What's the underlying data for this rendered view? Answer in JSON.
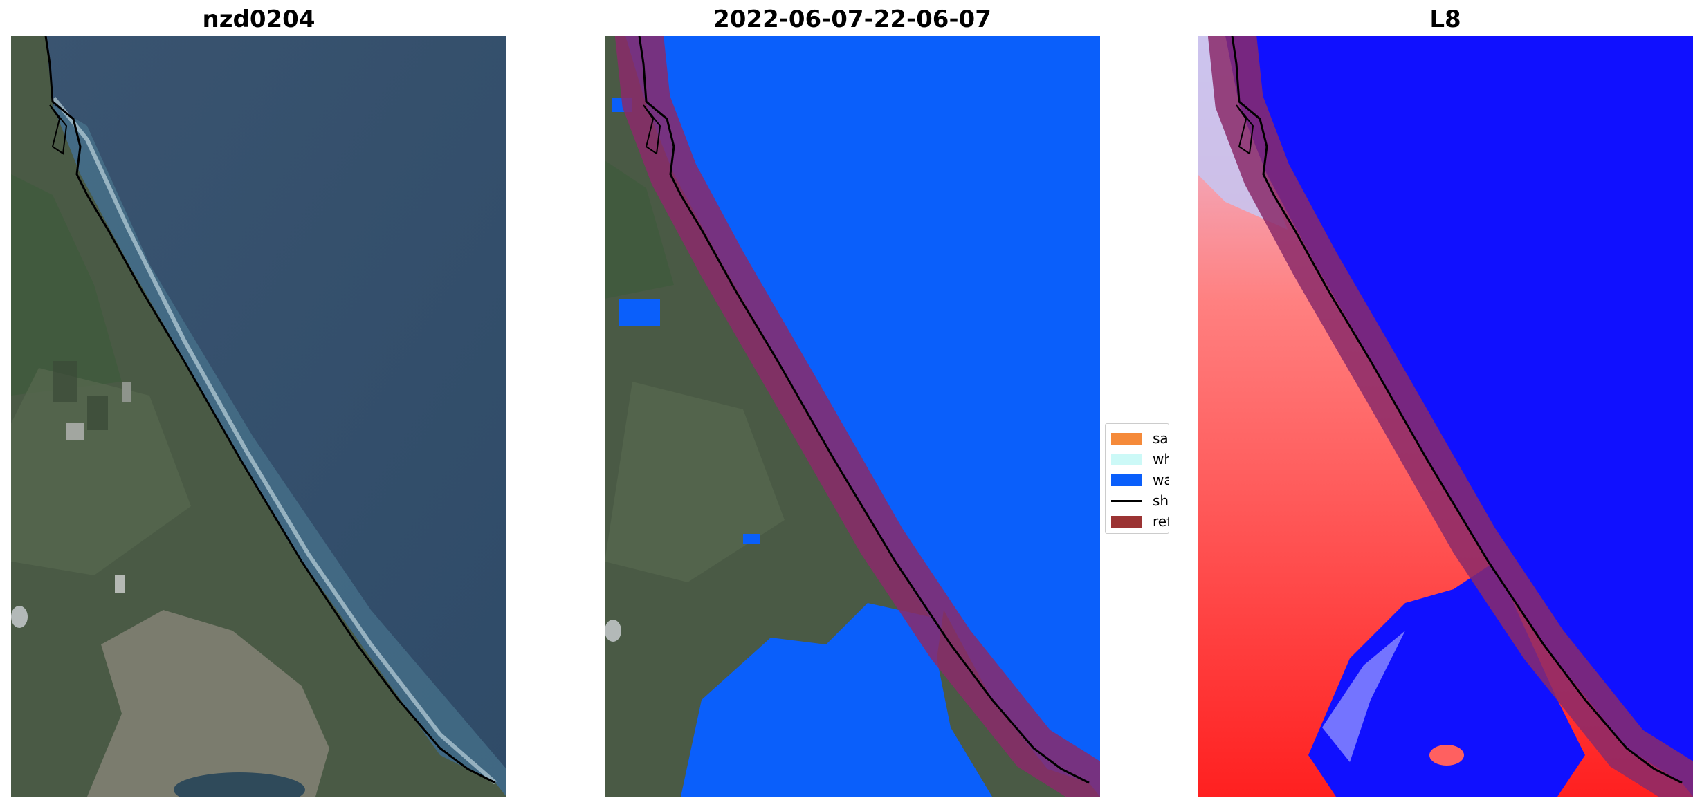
{
  "titles": [
    "nzd0204",
    "2022-06-07-22-06-07",
    "L8"
  ],
  "legend": [
    {
      "label": "sand",
      "color": "#f58a3a",
      "type": "patch"
    },
    {
      "label": "whitew",
      "color": "#ccf9f7",
      "type": "patch"
    },
    {
      "label": "water",
      "color": "#0a5ffb",
      "type": "patch"
    },
    {
      "label": "shorel",
      "color": "#000000",
      "type": "line"
    },
    {
      "label": "referen",
      "color": "#9b3333",
      "type": "patch"
    }
  ],
  "colors": {
    "water_class": "#0a5ffb",
    "reference_buffer": "#8a2a6a",
    "shoreline": "#000000",
    "index_positive": "#ff2020",
    "index_negative": "#1010ff"
  }
}
